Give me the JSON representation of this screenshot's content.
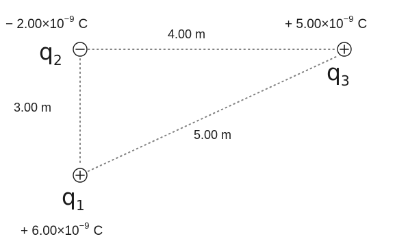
{
  "charges": {
    "q1": {
      "symbol": "q",
      "subscript": "1",
      "sign": "positive",
      "mantissa": "+ 6.00",
      "times": "×",
      "base": "10",
      "exponent": "−9",
      "unit": "C"
    },
    "q2": {
      "symbol": "q",
      "subscript": "2",
      "sign": "negative",
      "mantissa": "− 2.00",
      "times": "×",
      "base": "10",
      "exponent": "−9",
      "unit": "C"
    },
    "q3": {
      "symbol": "q",
      "subscript": "3",
      "sign": "positive",
      "mantissa": "+ 5.00",
      "times": "×",
      "base": "10",
      "exponent": "−9",
      "unit": "C"
    }
  },
  "distances": {
    "q2_q3": "4.00 m",
    "q1_q2": "3.00 m",
    "q1_q3": "5.00 m"
  }
}
